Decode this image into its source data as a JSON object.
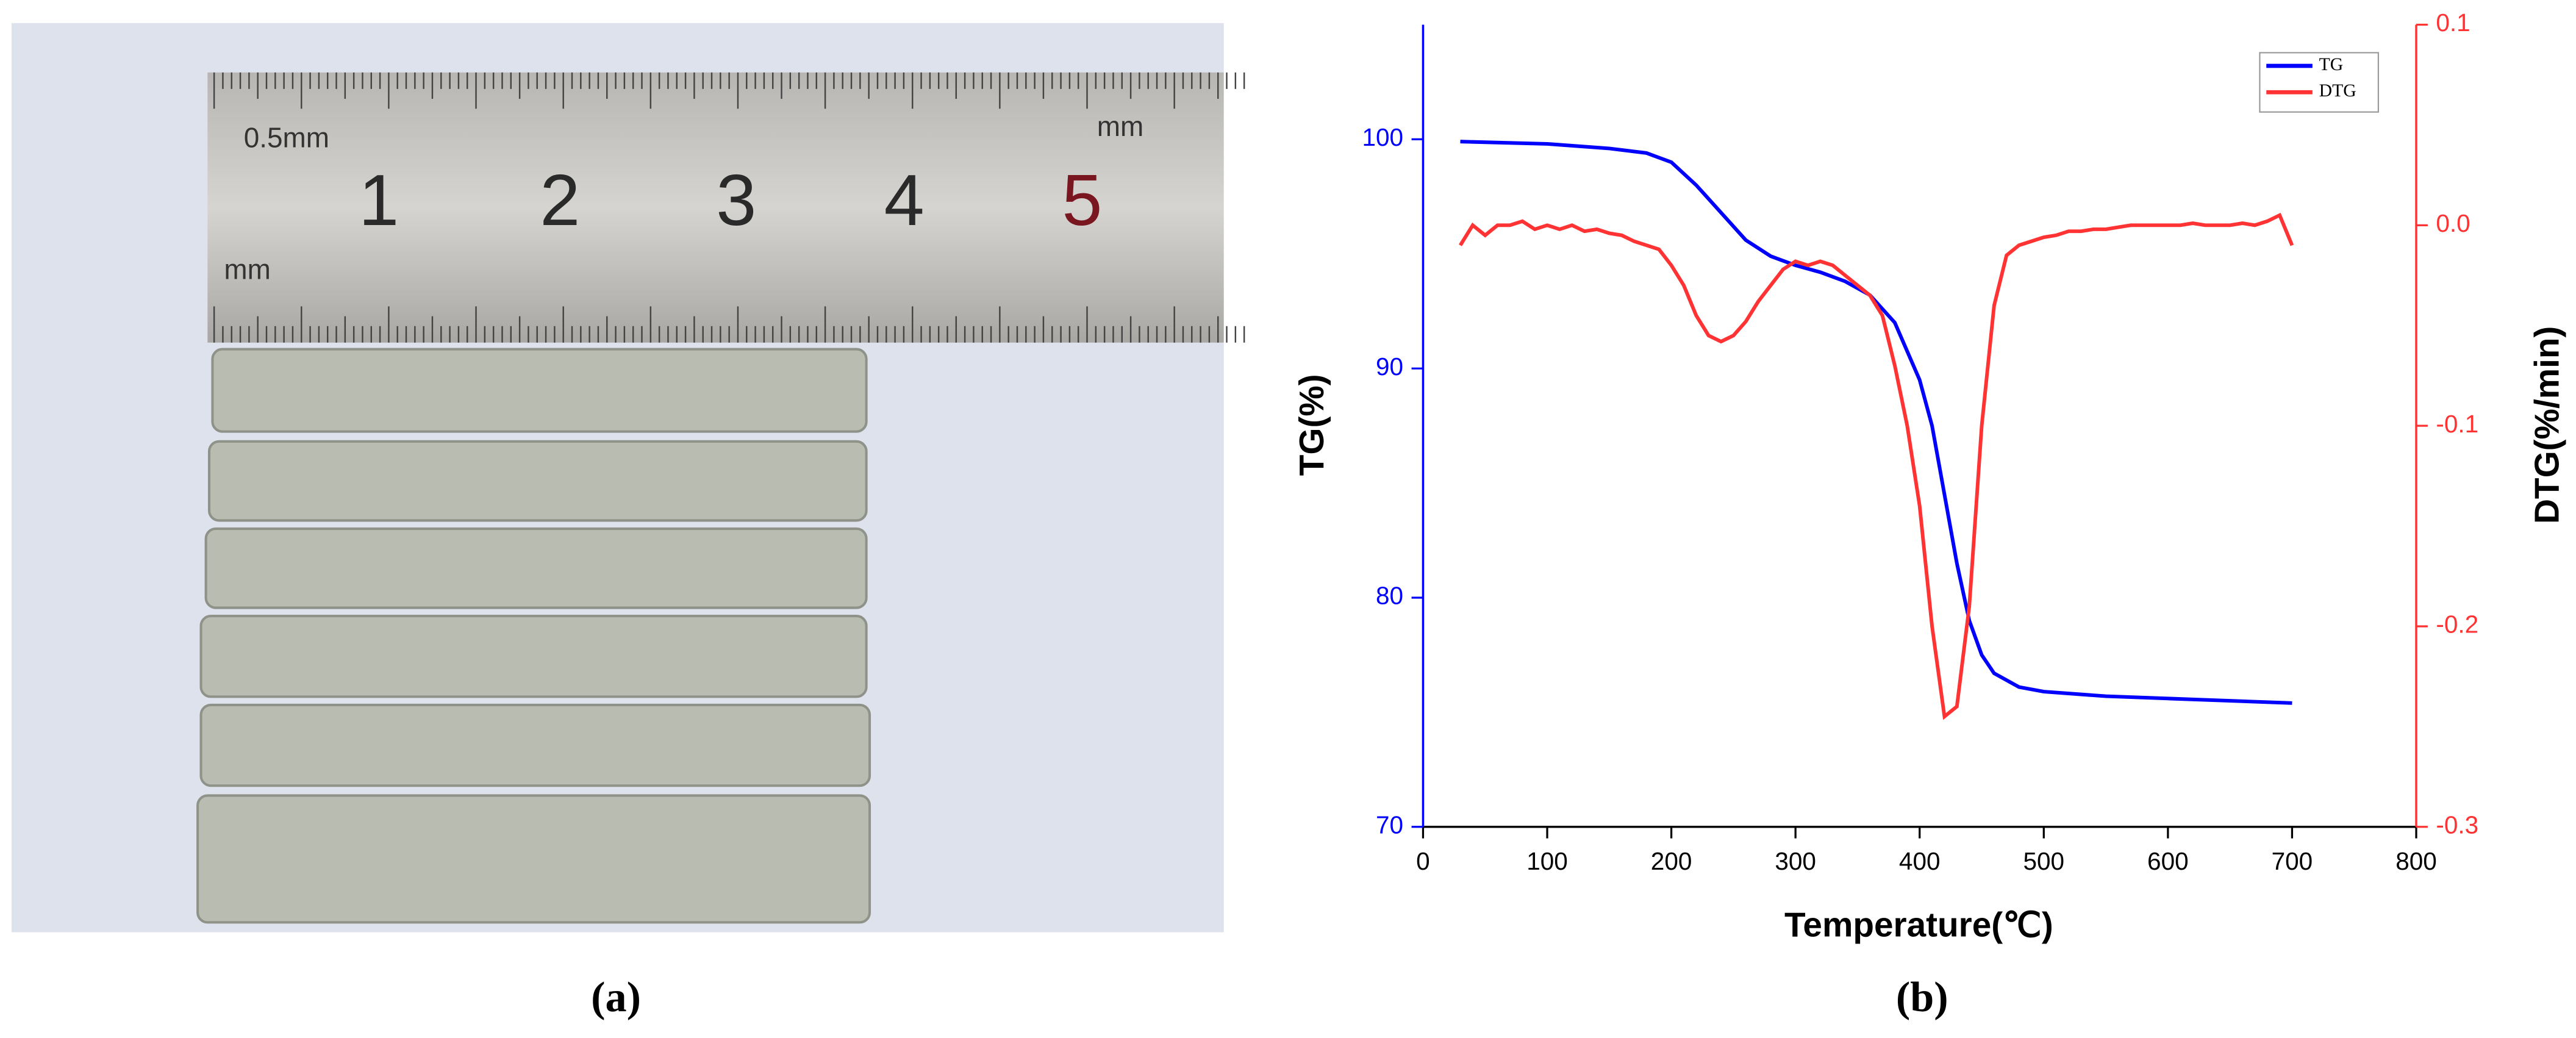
{
  "panels": {
    "a": {
      "caption": "(a)",
      "ruler_labels": [
        "0.5mm",
        "mm",
        "mm",
        "1",
        "2",
        "3",
        "4",
        "5"
      ]
    },
    "b": {
      "caption": "(b)"
    }
  },
  "chart_data": {
    "type": "line",
    "x_label": "Temperature(℃)",
    "y_label": "TG(%)",
    "y2_label": "DTG(%/min)",
    "xlim": [
      0,
      800
    ],
    "xticks": [
      0,
      100,
      200,
      300,
      400,
      500,
      600,
      700,
      800
    ],
    "ylim": [
      70,
      105
    ],
    "yticks": [
      70,
      80,
      90,
      100
    ],
    "y2lim": [
      -0.3,
      0.1
    ],
    "y2ticks": [
      -0.3,
      -0.2,
      -0.1,
      {
        "value": 0,
        "label": "0.0"
      },
      0.1
    ],
    "legend": "top-right",
    "grid": false,
    "series": [
      {
        "name": "TG",
        "color": "#0000ff",
        "x": [
          30,
          100,
          150,
          180,
          200,
          220,
          240,
          260,
          280,
          300,
          320,
          340,
          360,
          380,
          400,
          410,
          420,
          430,
          440,
          450,
          460,
          480,
          500,
          550,
          600,
          650,
          700
        ],
        "values": [
          99.9,
          99.8,
          99.6,
          99.4,
          99,
          98,
          96.8,
          95.6,
          94.9,
          94.5,
          94.2,
          93.8,
          93.2,
          92,
          89.5,
          87.5,
          84.5,
          81.5,
          79,
          77.5,
          76.7,
          76.1,
          75.9,
          75.7,
          75.6,
          75.5,
          75.4
        ]
      },
      {
        "name": "DTG",
        "color": "#ff3333",
        "axis": "y2",
        "x": [
          30,
          40,
          50,
          60,
          70,
          80,
          90,
          100,
          110,
          120,
          130,
          140,
          150,
          160,
          170,
          180,
          190,
          200,
          210,
          220,
          230,
          240,
          250,
          260,
          270,
          280,
          290,
          300,
          310,
          320,
          330,
          340,
          350,
          360,
          370,
          380,
          390,
          400,
          410,
          420,
          430,
          440,
          450,
          460,
          470,
          480,
          490,
          500,
          510,
          520,
          530,
          540,
          550,
          560,
          570,
          580,
          590,
          600,
          610,
          620,
          630,
          640,
          650,
          660,
          670,
          680,
          690,
          700
        ],
        "values": [
          -0.01,
          0.0,
          -0.005,
          0.0,
          0.0,
          0.002,
          -0.002,
          0.0,
          -0.002,
          0.0,
          -0.003,
          -0.002,
          -0.004,
          -0.005,
          -0.008,
          -0.01,
          -0.012,
          -0.02,
          -0.03,
          -0.045,
          -0.055,
          -0.058,
          -0.055,
          -0.048,
          -0.038,
          -0.03,
          -0.022,
          -0.018,
          -0.02,
          -0.018,
          -0.02,
          -0.025,
          -0.03,
          -0.035,
          -0.045,
          -0.07,
          -0.1,
          -0.14,
          -0.2,
          -0.245,
          -0.24,
          -0.19,
          -0.1,
          -0.04,
          -0.015,
          -0.01,
          -0.008,
          -0.006,
          -0.005,
          -0.003,
          -0.003,
          -0.002,
          -0.002,
          -0.001,
          0.0,
          0.0,
          0.0,
          0.0,
          0.0,
          0.001,
          0.0,
          0.0,
          0.0,
          0.001,
          0.0,
          0.002,
          0.005,
          -0.01
        ]
      }
    ]
  }
}
